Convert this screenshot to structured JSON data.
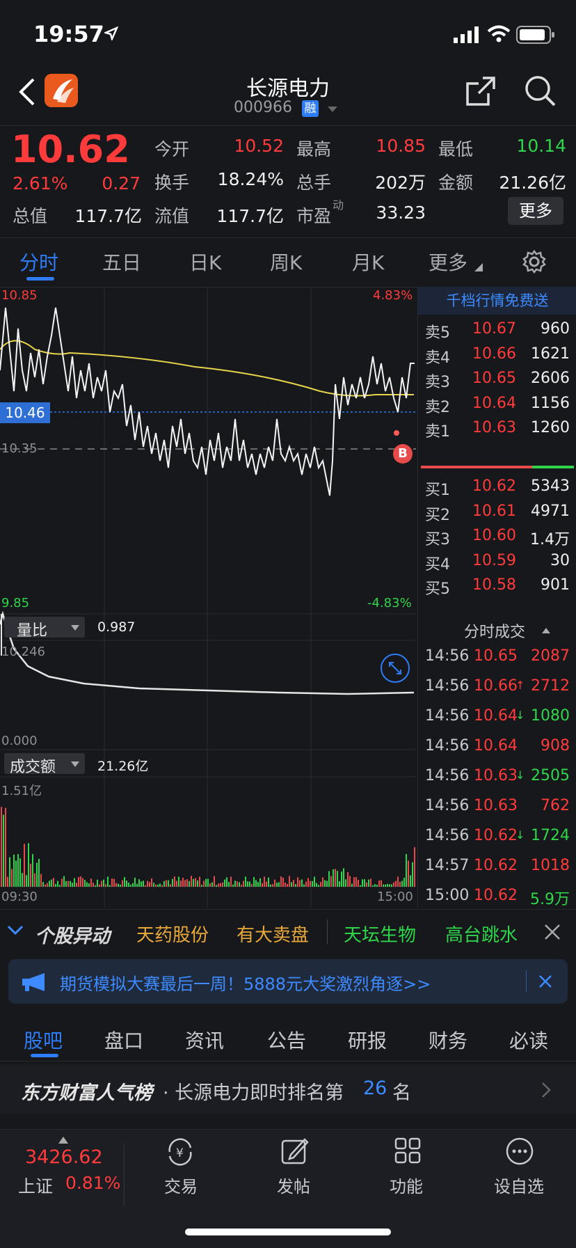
{
  "status_bar": {
    "time": "19:57"
  },
  "header": {
    "name": "长源电力",
    "code": "000966",
    "badge": "融"
  },
  "quote": {
    "price": "10.62",
    "change_pct": "2.61%",
    "change": "0.27",
    "fields": [
      {
        "label": "今开",
        "value": "10.52",
        "color": "red"
      },
      {
        "label": "最高",
        "value": "10.85",
        "color": "red"
      },
      {
        "label": "最低",
        "value": "10.14",
        "color": "green"
      },
      {
        "label": "换手",
        "value": "18.24%",
        "color": "white"
      },
      {
        "label": "总手",
        "value": "202万",
        "color": "white"
      },
      {
        "label": "金额",
        "value": "21.26亿",
        "color": "white"
      },
      {
        "label": "总值",
        "value": "117.7亿",
        "color": "white"
      },
      {
        "label": "流值",
        "value": "117.7亿",
        "color": "white"
      },
      {
        "label": "市盈",
        "value": "33.23",
        "color": "white"
      }
    ],
    "pe_sup": "动",
    "more": "更多"
  },
  "chart_tabs": [
    "分时",
    "五日",
    "日K",
    "周K",
    "月K",
    "更多"
  ],
  "chart": {
    "high_label": "10.85",
    "high_pct": "4.83%",
    "low_label": "9.85",
    "low_pct": "-4.83%",
    "ref_label": "10.35",
    "current_label": "10.46",
    "b_marker": "B",
    "ratio_label": "量比",
    "ratio_value": "0.987",
    "ratio_max": "10.246",
    "ratio_min": "0.000",
    "amount_label": "成交额",
    "amount_value": "21.26亿",
    "amount_max": "1.51亿",
    "time_start": "09:30",
    "time_end": "15:00"
  },
  "order_book": {
    "promo": "千档行情免费送",
    "sell": [
      {
        "label": "卖5",
        "price": "10.67",
        "vol": "960"
      },
      {
        "label": "卖4",
        "price": "10.66",
        "vol": "1621"
      },
      {
        "label": "卖3",
        "price": "10.65",
        "vol": "2606"
      },
      {
        "label": "卖2",
        "price": "10.64",
        "vol": "1156"
      },
      {
        "label": "卖1",
        "price": "10.63",
        "vol": "1260"
      }
    ],
    "buy": [
      {
        "label": "买1",
        "price": "10.62",
        "vol": "5343"
      },
      {
        "label": "买2",
        "price": "10.61",
        "vol": "4971"
      },
      {
        "label": "买3",
        "price": "10.60",
        "vol": "1.4万"
      },
      {
        "label": "买4",
        "price": "10.59",
        "vol": "30"
      },
      {
        "label": "买5",
        "price": "10.58",
        "vol": "901"
      }
    ],
    "trades_title": "分时成交",
    "trades": [
      {
        "time": "14:56",
        "price": "10.65",
        "arrow": "",
        "vol": "2087",
        "color": "red"
      },
      {
        "time": "14:56",
        "price": "10.66",
        "arrow": "↑",
        "vol": "2712",
        "color": "red"
      },
      {
        "time": "14:56",
        "price": "10.64",
        "arrow": "↓",
        "vol": "1080",
        "color": "green"
      },
      {
        "time": "14:56",
        "price": "10.64",
        "arrow": "",
        "vol": "908",
        "color": "red"
      },
      {
        "time": "14:56",
        "price": "10.63",
        "arrow": "↓",
        "vol": "2505",
        "color": "green"
      },
      {
        "time": "14:56",
        "price": "10.63",
        "arrow": "",
        "vol": "762",
        "color": "red"
      },
      {
        "time": "14:56",
        "price": "10.62",
        "arrow": "↓",
        "vol": "1724",
        "color": "green"
      },
      {
        "time": "14:57",
        "price": "10.62",
        "arrow": "",
        "vol": "1018",
        "color": "red"
      },
      {
        "time": "15:00",
        "price": "10.62",
        "arrow": "",
        "vol": "5.9万",
        "color": "green"
      }
    ]
  },
  "ticker": {
    "title": "个股异动",
    "items": [
      {
        "text": "天药股份",
        "color": "#e8a93a"
      },
      {
        "text": "有大卖盘",
        "color": "#e8a93a"
      },
      {
        "text": "天坛生物",
        "color": "#2fd54a"
      },
      {
        "text": "高台跳水",
        "color": "#2fd54a"
      }
    ]
  },
  "banner": {
    "text": "期货模拟大赛最后一周！5888元大奖激烈角逐>>"
  },
  "section_tabs": [
    "股吧",
    "盘口",
    "资讯",
    "公告",
    "研报",
    "财务",
    "必读"
  ],
  "rank": {
    "brand": "东方财富人气榜",
    "text": "· 长源电力即时排名第",
    "number": "26",
    "suffix": "名"
  },
  "bottom_bar": {
    "index_value": "3426.62",
    "index_name": "上证",
    "index_pct": "0.81%",
    "items": [
      "交易",
      "发帖",
      "功能",
      "设自选"
    ]
  }
}
